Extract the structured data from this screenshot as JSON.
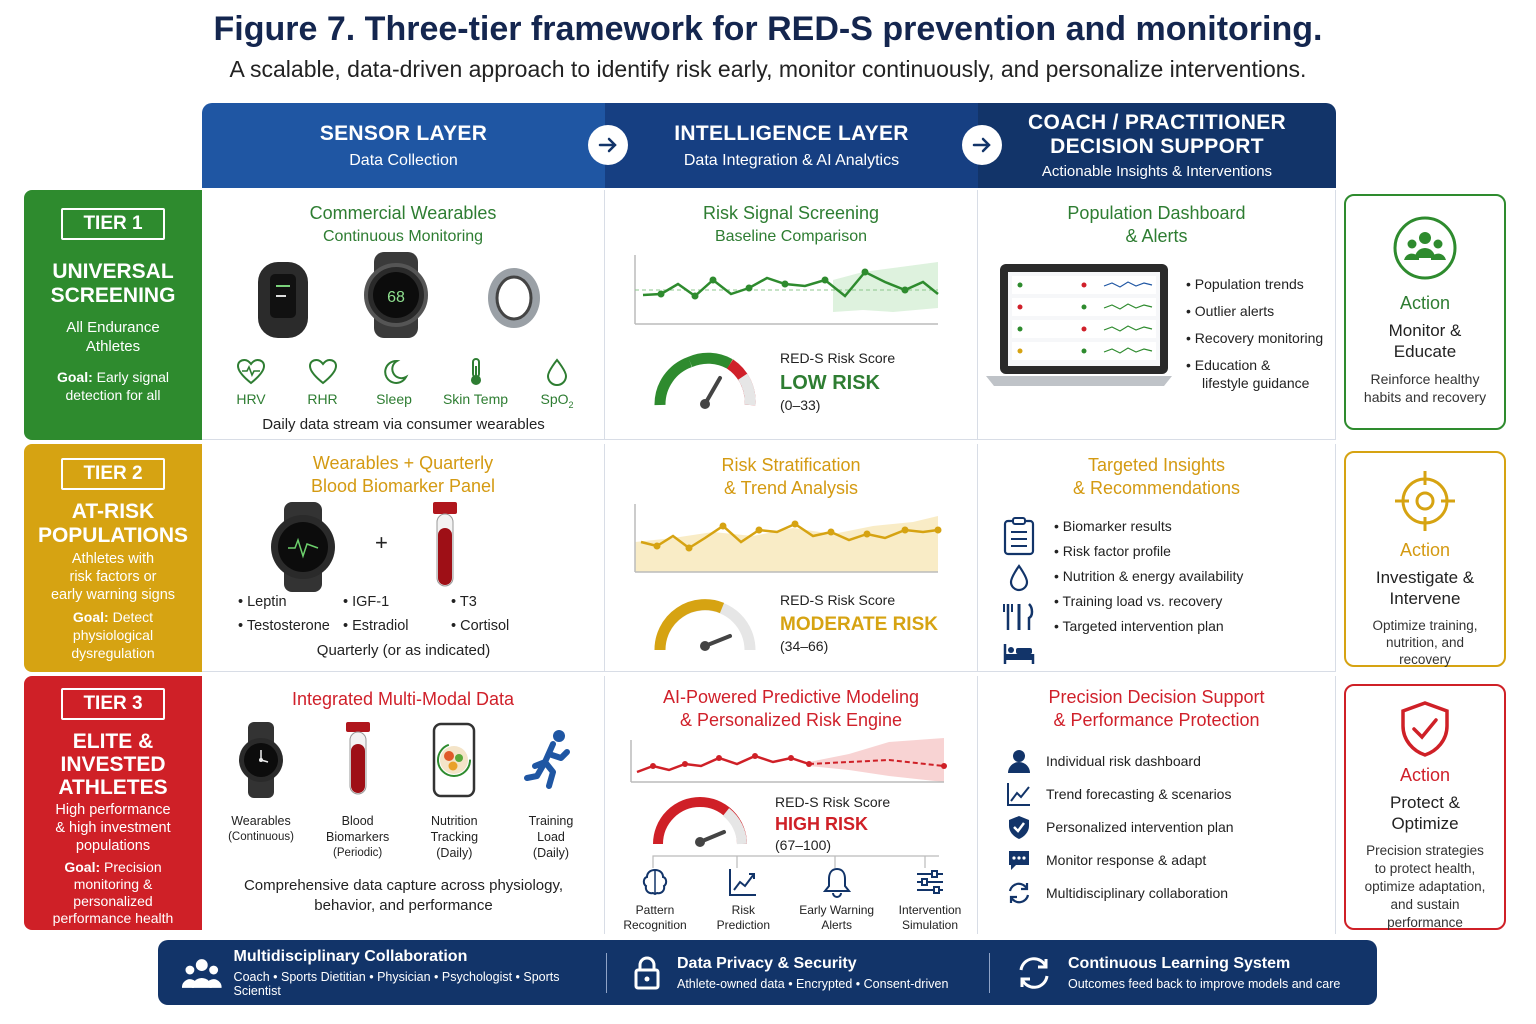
{
  "title": "Figure 7. Three-tier framework for RED-S prevention and monitoring.",
  "subtitle": "A scalable, data-driven approach to identify risk early, monitor continuously, and personalize interventions.",
  "colors": {
    "green": "#2e8b2e",
    "gold": "#d6a312",
    "red": "#cf2027",
    "navy": "#123469",
    "blue": "#1f56a3"
  },
  "header": {
    "sensor": {
      "title": "SENSOR LAYER",
      "sub": "Data Collection"
    },
    "intel": {
      "title": "INTELLIGENCE LAYER",
      "sub": "Data Integration & AI Analytics"
    },
    "coach": {
      "title1": "COACH / PRACTITIONER",
      "title2": "DECISION SUPPORT",
      "sub": "Actionable Insights & Interventions"
    }
  },
  "tiers": [
    {
      "badge": "TIER 1",
      "name1": "UNIVERSAL",
      "name2": "SCREENING",
      "desc1": "All Endurance",
      "desc2": "Athletes",
      "goal_label": "Goal:",
      "goal1": "Early signal",
      "goal2": "detection for all"
    },
    {
      "badge": "TIER 2",
      "name1": "AT-RISK",
      "name2": "POPULATIONS",
      "desc1": "Athletes with",
      "desc2": "risk factors or",
      "desc3": "early warning signs",
      "goal_label": "Goal:",
      "goal1": "Detect",
      "goal2": "physiological",
      "goal3": "dysregulation"
    },
    {
      "badge": "TIER 3",
      "name1": "ELITE &",
      "name2": "INVESTED",
      "name3": "ATHLETES",
      "desc1": "High performance",
      "desc2": "& high investment",
      "desc3": "populations",
      "goal_label": "Goal:",
      "goal1": "Precision",
      "goal2": "monitoring &",
      "goal3": "personalized",
      "goal4": "performance health"
    }
  ],
  "tier1": {
    "sensor": {
      "t1": "Commercial Wearables",
      "t2": "Continuous Monitoring",
      "watch_value": "68",
      "metrics": [
        "HRV",
        "RHR",
        "Sleep",
        "Skin Temp",
        "SpO"
      ],
      "spo_sub": "2",
      "note": "Daily data stream via consumer wearables"
    },
    "intel": {
      "t1": "Risk Signal Screening",
      "t2": "Baseline Comparison",
      "score_label": "RED-S Risk Score",
      "level": "LOW RISK",
      "range": "(0–33)"
    },
    "coach": {
      "t1": "Population Dashboard",
      "t2": "& Alerts",
      "bullets": [
        "Population trends",
        "Outlier alerts",
        "Recovery monitoring",
        "Education &"
      ],
      "bullet_cont": "lifestyle guidance"
    },
    "action": {
      "label": "Action",
      "h1": "Monitor &",
      "h2": "Educate",
      "d1": "Reinforce healthy",
      "d2": "habits and recovery"
    }
  },
  "tier2": {
    "sensor": {
      "t1": "Wearables + Quarterly",
      "t2": "Blood Biomarker Panel",
      "plus": "+",
      "markers": [
        "Leptin",
        "IGF-1",
        "T3",
        "Testosterone",
        "Estradiol",
        "Cortisol"
      ],
      "note": "Quarterly (or as indicated)"
    },
    "intel": {
      "t1": "Risk Stratification",
      "t2": "& Trend Analysis",
      "score_label": "RED-S Risk Score",
      "level": "MODERATE RISK",
      "range": "(34–66)"
    },
    "coach": {
      "t1": "Targeted Insights",
      "t2": "& Recommendations",
      "bullets": [
        "Biomarker results",
        "Risk factor profile",
        "Nutrition & energy availability",
        "Training load vs. recovery",
        "Targeted intervention plan"
      ]
    },
    "action": {
      "label": "Action",
      "h1": "Investigate &",
      "h2": "Intervene",
      "d1": "Optimize training,",
      "d2": "nutrition, and",
      "d3": "recovery"
    }
  },
  "tier3": {
    "sensor": {
      "t1": "Integrated Multi-Modal Data",
      "items": [
        {
          "a": "Wearables",
          "b": "(Continuous)"
        },
        {
          "a": "Blood",
          "b": "Biomarkers",
          "c": "(Periodic)"
        },
        {
          "a": "Nutrition",
          "b": "Tracking",
          "c": "(Daily)"
        },
        {
          "a": "Training",
          "b": "Load",
          "c": "(Daily)"
        }
      ],
      "note1": "Comprehensive data capture across physiology,",
      "note2": "behavior, and performance"
    },
    "intel": {
      "t1": "AI-Powered Predictive Modeling",
      "t2": "& Personalized Risk Engine",
      "score_label": "RED-S Risk Score",
      "level": "HIGH RISK",
      "range": "(67–100)",
      "tools": [
        {
          "a": "Pattern",
          "b": "Recognition"
        },
        {
          "a": "Risk",
          "b": "Prediction"
        },
        {
          "a": "Early Warning",
          "b": "Alerts"
        },
        {
          "a": "Intervention",
          "b": "Simulation"
        }
      ]
    },
    "coach": {
      "t1": "Precision Decision Support",
      "t2": "& Performance Protection",
      "items": [
        "Individual risk dashboard",
        "Trend forecasting & scenarios",
        "Personalized intervention plan",
        "Monitor response & adapt",
        "Multidisciplinary collaboration"
      ]
    },
    "action": {
      "label": "Action",
      "h1": "Protect &",
      "h2": "Optimize",
      "d1": "Precision strategies",
      "d2": "to protect health,",
      "d3": "optimize adaptation,",
      "d4": "and sustain",
      "d5": "performance"
    }
  },
  "footer": [
    {
      "title": "Multidisciplinary Collaboration",
      "sub": "Coach • Sports Dietitian • Physician • Psychologist • Sports Scientist"
    },
    {
      "title": "Data Privacy & Security",
      "sub": "Athlete-owned data • Encrypted • Consent-driven"
    },
    {
      "title": "Continuous Learning System",
      "sub": "Outcomes feed back to improve models and care"
    }
  ]
}
